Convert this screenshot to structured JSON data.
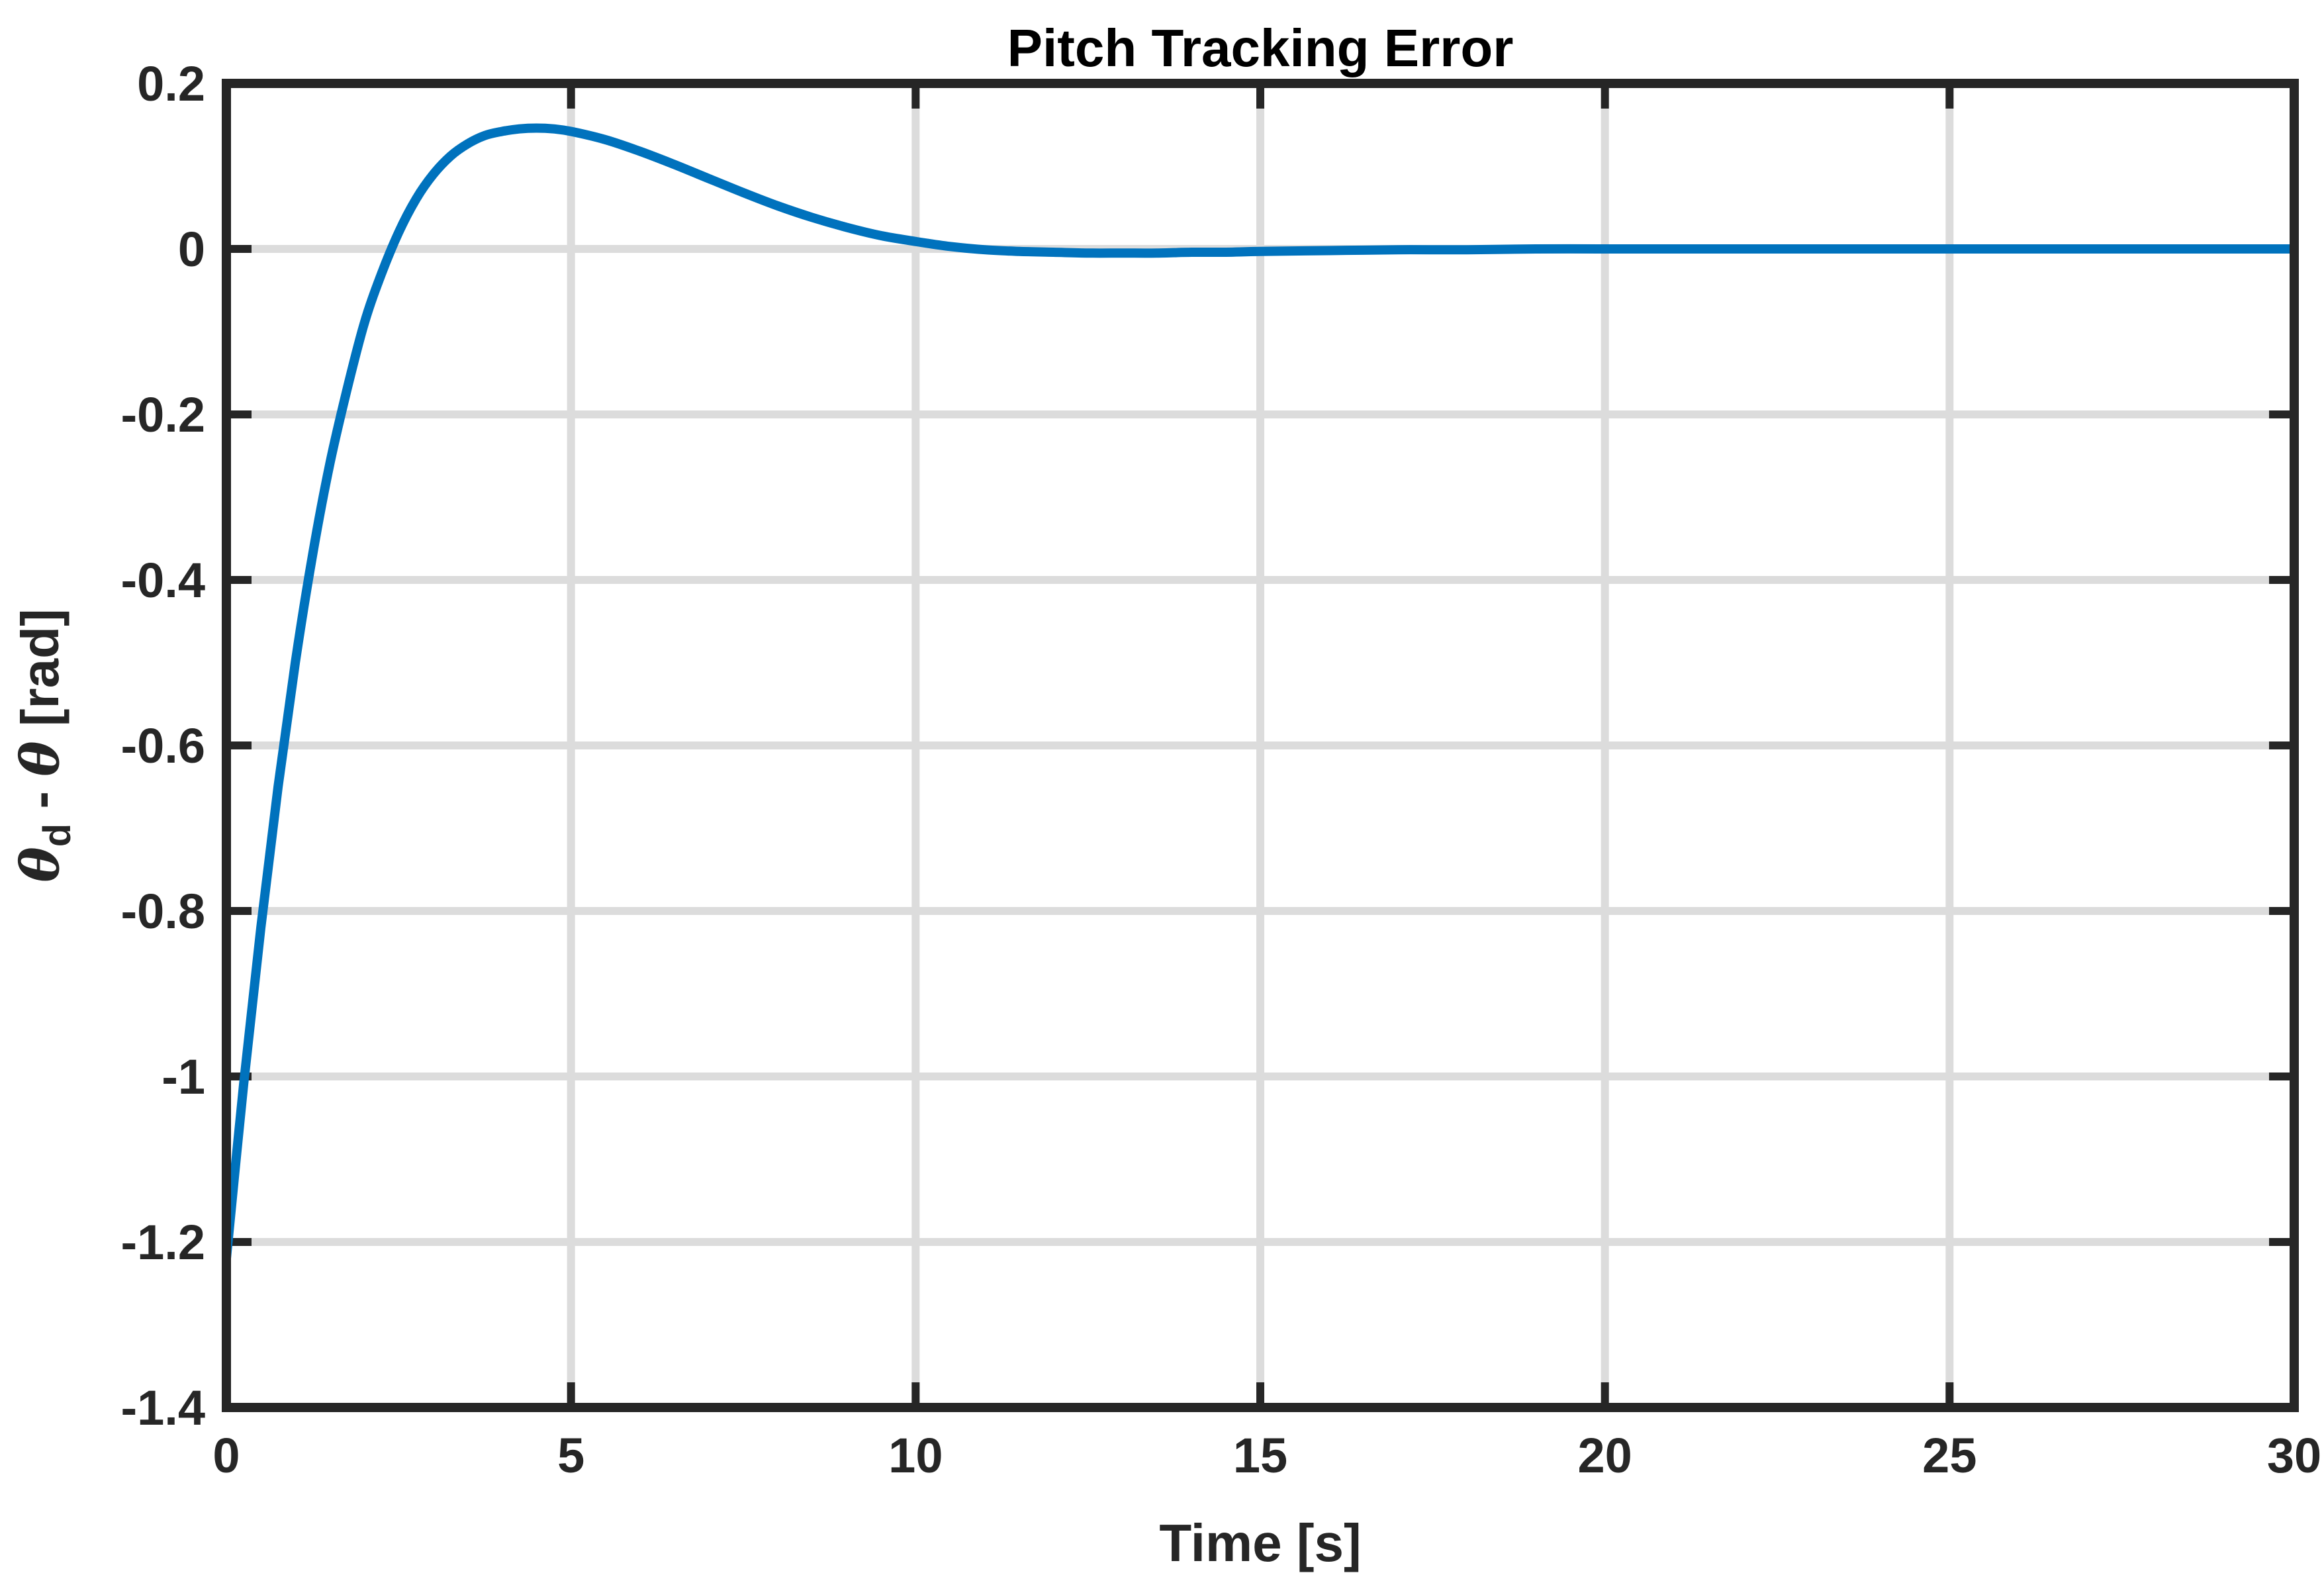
{
  "chart_data": {
    "type": "line",
    "title": "Pitch Tracking Error",
    "xlabel": "Time [s]",
    "ylabel": {
      "prefix": "θ",
      "subscript": "d",
      "middle": " - ",
      "symbol": "θ",
      "suffix": " [rad]"
    },
    "xlim": [
      0,
      30
    ],
    "ylim": [
      -1.4,
      0.2
    ],
    "xticks": [
      0,
      5,
      10,
      15,
      20,
      25,
      30
    ],
    "xtick_labels": [
      "0",
      "5",
      "10",
      "15",
      "20",
      "25",
      "30"
    ],
    "yticks": [
      0.2,
      0,
      -0.2,
      -0.4,
      -0.6,
      -0.8,
      -1,
      -1.2,
      -1.4
    ],
    "ytick_labels": [
      "0.2",
      "0",
      "-0.2",
      "-0.4",
      "-0.6",
      "-0.8",
      "-1",
      "-1.2",
      "-1.4"
    ],
    "grid": true,
    "colors": {
      "line": "#0072BD",
      "axes": "#262626",
      "grid": "#DCDCDC"
    },
    "series": [
      {
        "x": [
          0,
          0.25,
          0.5,
          0.75,
          1,
          1.25,
          1.5,
          1.75,
          2,
          2.25,
          2.5,
          2.75,
          3,
          3.25,
          3.5,
          3.75,
          4,
          4.25,
          4.5,
          4.75,
          5,
          5.5,
          6,
          6.5,
          7,
          7.5,
          8,
          8.5,
          9,
          9.5,
          10,
          10.5,
          11,
          11.5,
          12,
          12.5,
          13,
          13.5,
          14,
          14.5,
          15,
          16,
          17,
          18,
          19,
          20,
          21,
          22,
          23,
          24,
          25,
          26,
          27,
          28,
          29,
          30
        ],
        "y": [
          -1.22,
          -1.01,
          -0.82,
          -0.65,
          -0.5,
          -0.37,
          -0.26,
          -0.17,
          -0.09,
          -0.03,
          0.02,
          0.06,
          0.09,
          0.112,
          0.127,
          0.137,
          0.142,
          0.145,
          0.146,
          0.145,
          0.142,
          0.132,
          0.118,
          0.102,
          0.085,
          0.068,
          0.052,
          0.038,
          0.026,
          0.016,
          0.009,
          0.003,
          -0.001,
          -0.003,
          -0.004,
          -0.005,
          -0.005,
          -0.005,
          -0.004,
          -0.004,
          -0.003,
          -0.002,
          -0.001,
          -0.001,
          0,
          0,
          0,
          0,
          0,
          0,
          0,
          0,
          0,
          0,
          0,
          0
        ]
      }
    ]
  }
}
